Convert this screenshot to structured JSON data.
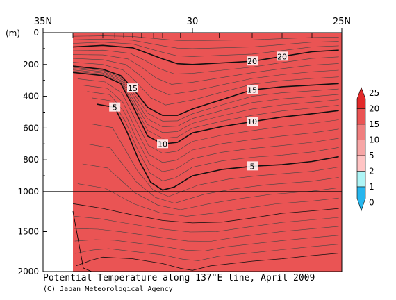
{
  "chart_data": {
    "type": "contour",
    "title": "Potential Temperature along 137°E line, April 2009",
    "credit": "(C) Japan Meteorological Agency",
    "xlabel": "",
    "ylabel": "(m)",
    "x_axis": {
      "range": [
        35,
        25
      ],
      "ticks": [
        {
          "value": 35,
          "label": "35N"
        },
        {
          "value": 30,
          "label": "30"
        },
        {
          "value": 25,
          "label": "25N"
        }
      ],
      "station_ticks": [
        34,
        33,
        32.6,
        32.3,
        32,
        31.7,
        31.3,
        31,
        30.4,
        29.1,
        28,
        27,
        26
      ]
    },
    "y_axis": {
      "range": [
        0,
        2000
      ],
      "break_at": 1000,
      "upper_ticks": [
        0,
        200,
        400,
        600,
        800,
        1000
      ],
      "lower_ticks": [
        1500,
        2000
      ]
    },
    "colorbar": {
      "levels": [
        0,
        1,
        2,
        5,
        10,
        15,
        20,
        25
      ],
      "colors": [
        "#26b6ee",
        "#64ddea",
        "#aef5f6",
        "#ffc4c4",
        "#f7a6a6",
        "#f07f7f",
        "#ea5454",
        "#e22a2a"
      ],
      "placement": "right"
    },
    "isotherms": [
      {
        "value": 20,
        "label": "20",
        "points": [
          [
            34,
            90
          ],
          [
            33,
            80
          ],
          [
            32,
            95
          ],
          [
            31.5,
            130
          ],
          [
            31,
            165
          ],
          [
            30.5,
            195
          ],
          [
            30,
            200
          ],
          [
            29,
            190
          ],
          [
            28,
            180
          ],
          [
            27,
            150
          ],
          [
            26,
            120
          ],
          [
            25.1,
            110
          ]
        ]
      },
      {
        "value": 15,
        "label": "15",
        "points": [
          [
            34,
            210
          ],
          [
            33,
            230
          ],
          [
            32.4,
            270
          ],
          [
            32,
            350
          ],
          [
            31.5,
            470
          ],
          [
            31,
            520
          ],
          [
            30.5,
            520
          ],
          [
            30,
            480
          ],
          [
            29,
            420
          ],
          [
            28,
            360
          ],
          [
            27,
            340
          ],
          [
            26,
            330
          ],
          [
            25.1,
            320
          ]
        ]
      },
      {
        "value": 10,
        "label": "10",
        "points": [
          [
            34,
            250
          ],
          [
            33,
            270
          ],
          [
            32.4,
            320
          ],
          [
            32,
            460
          ],
          [
            31.5,
            650
          ],
          [
            31,
            700
          ],
          [
            30.5,
            690
          ],
          [
            30,
            630
          ],
          [
            29,
            590
          ],
          [
            28,
            560
          ],
          [
            27,
            530
          ],
          [
            26,
            510
          ],
          [
            25.1,
            490
          ]
        ]
      },
      {
        "value": 5,
        "label": "5",
        "points": [
          [
            33.2,
            450
          ],
          [
            32.6,
            470
          ],
          [
            32.2,
            620
          ],
          [
            31.8,
            800
          ],
          [
            31.4,
            940
          ],
          [
            31,
            990
          ],
          [
            30.6,
            970
          ],
          [
            30,
            900
          ],
          [
            29,
            860
          ],
          [
            28,
            840
          ],
          [
            27,
            830
          ],
          [
            26,
            810
          ],
          [
            25.1,
            780
          ]
        ]
      },
      {
        "value": 2,
        "label": "",
        "points": [
          [
            34,
            1150
          ],
          [
            33,
            1210
          ],
          [
            32,
            1290
          ],
          [
            31,
            1360
          ],
          [
            30,
            1390
          ],
          [
            29,
            1380
          ],
          [
            28,
            1330
          ],
          [
            27,
            1270
          ],
          [
            26,
            1240
          ],
          [
            25.1,
            1210
          ]
        ]
      },
      {
        "value": 1,
        "label": "",
        "points": [
          [
            33.9,
            1930
          ],
          [
            33.4,
            1860
          ],
          [
            33,
            1820
          ],
          [
            32,
            1840
          ],
          [
            31,
            1900
          ],
          [
            30.4,
            1960
          ],
          [
            30,
            1985
          ],
          [
            29.4,
            1930
          ],
          [
            28,
            1870
          ],
          [
            27,
            1840
          ],
          [
            26,
            1800
          ],
          [
            25.1,
            1770
          ]
        ]
      }
    ]
  }
}
